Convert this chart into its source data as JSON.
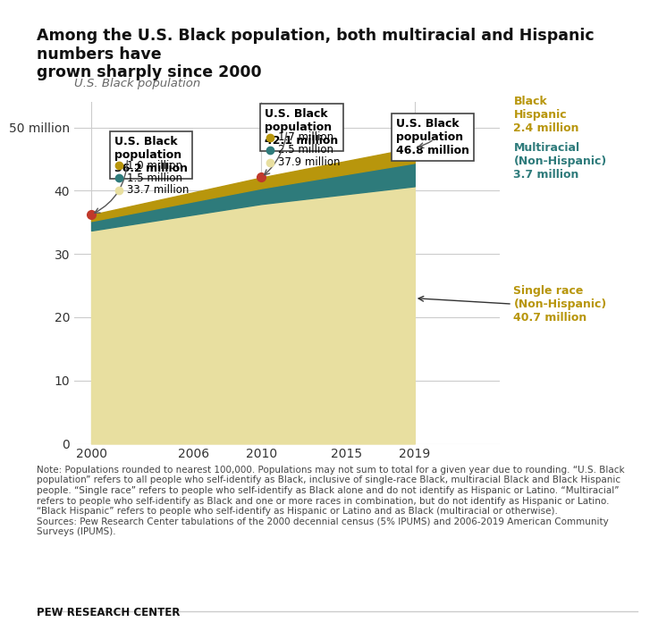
{
  "title": "Among the U.S. Black population, both multiracial and Hispanic numbers have\ngrown sharply since 2000",
  "ylabel": "U.S. Black population",
  "bg_color": "#ffffff",
  "years": [
    2000,
    2010,
    2019
  ],
  "single_race": [
    33.7,
    37.9,
    40.7
  ],
  "multiracial": [
    1.5,
    2.5,
    3.7
  ],
  "black_hispanic": [
    1.0,
    1.7,
    2.4
  ],
  "colors": {
    "single_race": "#e8dfa0",
    "multiracial": "#2e7b7b",
    "black_hispanic": "#b8960c",
    "dot": "#c0392b",
    "grid": "#cccccc",
    "axis_text": "#555555",
    "annotation_box_edge": "#333333"
  },
  "callout_2000": {
    "title": "U.S. Black\npopulation\n36.2 million",
    "hispanic": "1.0 million",
    "multiracial": "1.5 million",
    "single": "33.7 million"
  },
  "callout_2010": {
    "title": "U.S. Black\npopulation\n42.1 million",
    "hispanic": "1.7 million",
    "multiracial": "2.5 million",
    "single": "37.9 million"
  },
  "callout_2019": {
    "title": "U.S. Black\npopulation\n46.8 million",
    "total": "46.8 million"
  },
  "right_labels": [
    {
      "text": "Black\nHispanic\n2.4 million",
      "color": "#b8960c",
      "y": 46.0
    },
    {
      "text": "Multiracial\n(Non-Hispanic)\n3.7 million",
      "color": "#2e7b7b",
      "y": 43.5
    },
    {
      "text": "Single race\n(Non-Hispanic)\n40.7 million",
      "color": "#b8960c",
      "y": 23.0
    }
  ],
  "note_text": "Note: Populations rounded to nearest 100,000. Populations may not sum to total for a given year due to rounding. “U.S. Black\npopulation” refers to all people who self-identify as Black, inclusive of single-race Black, multiracial Black and Black Hispanic\npeople. “Single race” refers to people who self-identify as Black alone and do not identify as Hispanic or Latino. “Multiracial”\nrefers to people who self-identify as Black and one or more races in combination, but do not identify as Hispanic or Latino.\n“Black Hispanic” refers to people who self-identify as Hispanic or Latino and as Black (multiracial or otherwise).\nSources: Pew Research Center tabulations of the 2000 decennial census (5% IPUMS) and 2006-2019 American Community\nSurveys (IPUMS).",
  "source_text": "PEW RESEARCH CENTER",
  "xlim": [
    1999,
    2024
  ],
  "ylim": [
    0,
    54
  ],
  "xticks": [
    2000,
    2006,
    2010,
    2015,
    2019
  ],
  "yticks": [
    0,
    10,
    20,
    30,
    40,
    50
  ],
  "ytick_labels": [
    "0",
    "10",
    "20",
    "30",
    "40",
    "50 million"
  ]
}
